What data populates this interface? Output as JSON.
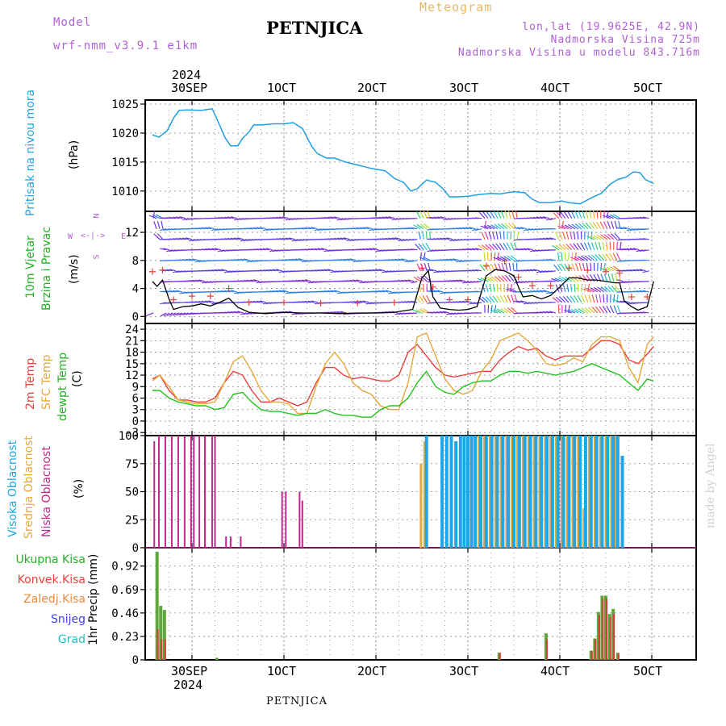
{
  "header": {
    "model_label": "Model",
    "model_name": "wrf-nmm_v3.9.1 e1km",
    "title": "PETNJICA",
    "meteogram": "Meteogram",
    "lonlat": "lon,lat (19.9625E, 42.9N)",
    "altitude": "Nadmorska Visina 725m",
    "model_altitude": "Nadmorska Visina u modelu 843.716m",
    "credit": "made by Angel",
    "bottom_title": "PETNJICA"
  },
  "colors": {
    "pressure": "#1e9fe6",
    "temp2m": "#e8413c",
    "sfc_temp": "#e6a73c",
    "dewpoint": "#22c31e",
    "high_cloud": "#1ea6e6",
    "mid_cloud": "#e6aa3c",
    "low_cloud": "#c0278f",
    "total_precip": "#5ea83a",
    "conv_precip": "#d8383a",
    "grid": "#888888"
  },
  "time_axis": {
    "year": "2024",
    "top_labels": [
      "30SEP",
      "1OCT",
      "2OCT",
      "3OCT",
      "4OCT",
      "5OCT"
    ],
    "bottom_labels": [
      "30SEP",
      "1OCT",
      "2OCT",
      "3OCT",
      "4OCT",
      "5OCT"
    ]
  },
  "labels": {
    "pressure": [
      "Pritisak na nivou mora",
      "(hPa)"
    ],
    "wind": [
      "10m Vjetar",
      "Brzina i Pravac",
      "(m/s)"
    ],
    "compass": {
      "n": "N",
      "s": "S",
      "w": "W",
      "e": "E"
    },
    "temp": [
      "2m Temp",
      "SFC Temp",
      "dewpt Temp",
      "(C)"
    ],
    "cloud": [
      "Visoka Oblacnost",
      "Srednja Oblacnost",
      "Niska Oblacnost",
      "(%)"
    ],
    "precip_axis": "1hr Precip (mm)",
    "precip_legend": [
      "Ukupna Kisa",
      "Konvek.Kisa",
      "Zaledj.Kisa",
      "Snijeg",
      "Grad"
    ]
  },
  "legend_colors": [
    "#22b022",
    "#e8413c",
    "#f08a3c",
    "#4040e0",
    "#20c0c0"
  ],
  "chart_data": [
    {
      "type": "line",
      "name": "pressure",
      "ylabel": "(hPa)",
      "ylim": [
        1006.5,
        1025.7
      ],
      "yticks": [
        1010,
        1015,
        1020,
        1025
      ],
      "xlim": [
        -0.43,
        5.02
      ],
      "x": [
        -0.43,
        -0.36,
        -0.27,
        -0.2,
        -0.14,
        -0.05,
        0.1,
        0.22,
        0.3,
        0.36,
        0.42,
        0.5,
        0.55,
        0.62,
        0.67,
        0.76,
        0.88,
        1.0,
        1.1,
        1.2,
        1.3,
        1.36,
        1.46,
        1.55,
        1.67,
        1.8,
        1.95,
        2.1,
        2.2,
        2.3,
        2.38,
        2.45,
        2.55,
        2.65,
        2.73,
        2.8,
        2.9,
        3.0,
        3.12,
        3.25,
        3.35,
        3.5,
        3.62,
        3.7,
        3.78,
        3.9,
        4.02,
        4.1,
        4.22,
        4.35,
        4.45,
        4.55,
        4.63,
        4.72,
        4.8,
        4.87,
        4.93,
        5.02
      ],
      "y": [
        1019.7,
        1019.3,
        1020.4,
        1022.6,
        1023.9,
        1024.0,
        1023.9,
        1024.2,
        1021.4,
        1019.2,
        1017.8,
        1017.8,
        1019.1,
        1020.2,
        1021.4,
        1021.4,
        1021.6,
        1021.6,
        1021.8,
        1020.8,
        1017.8,
        1016.5,
        1015.7,
        1015.7,
        1015.0,
        1014.5,
        1013.9,
        1013.5,
        1012.2,
        1011.5,
        1010.0,
        1010.4,
        1011.9,
        1011.5,
        1010.4,
        1009.0,
        1009.0,
        1009.1,
        1009.4,
        1009.6,
        1009.5,
        1009.9,
        1009.7,
        1008.6,
        1008.0,
        1008.0,
        1008.3,
        1008.0,
        1007.8,
        1008.9,
        1009.6,
        1011.2,
        1012.0,
        1012.4,
        1013.3,
        1013.2,
        1012.0,
        1011.3
      ]
    },
    {
      "type": "line",
      "name": "wind",
      "ylabel": "(m/s)",
      "ylim": [
        -1.0,
        15.0
      ],
      "yticks": [
        0,
        4,
        8,
        12
      ],
      "x": [
        -0.43,
        -0.38,
        -0.32,
        -0.25,
        -0.2,
        -0.1,
        0.0,
        0.1,
        0.2,
        0.3,
        0.4,
        0.5,
        0.62,
        0.8,
        1.0,
        1.2,
        1.4,
        1.6,
        1.8,
        2.0,
        2.2,
        2.4,
        2.5,
        2.57,
        2.62,
        2.7,
        2.8,
        2.9,
        3.0,
        3.1,
        3.2,
        3.3,
        3.4,
        3.5,
        3.55,
        3.6,
        3.7,
        3.8,
        3.9,
        4.0,
        4.1,
        4.2,
        4.3,
        4.4,
        4.5,
        4.6,
        4.65,
        4.7,
        4.78,
        4.85,
        4.95,
        5.02
      ],
      "y": [
        5.0,
        4.3,
        5.2,
        2.5,
        1.0,
        1.4,
        1.5,
        1.8,
        1.5,
        2.0,
        2.6,
        1.3,
        0.6,
        0.4,
        0.6,
        0.5,
        0.5,
        0.4,
        0.5,
        0.5,
        0.6,
        1.0,
        5.5,
        6.5,
        2.8,
        1.2,
        1.0,
        0.9,
        1.0,
        1.4,
        5.8,
        6.7,
        6.5,
        5.8,
        4.2,
        2.8,
        3.0,
        2.5,
        3.0,
        4.2,
        5.5,
        5.5,
        5.2,
        5.2,
        5.0,
        4.8,
        4.8,
        2.2,
        1.4,
        0.9,
        1.4,
        5.0
      ]
    },
    {
      "type": "line",
      "name": "temperature",
      "ylabel": "(C)",
      "ylim": [
        -3.8,
        25.5
      ],
      "yticks": [
        -3,
        0,
        3,
        6,
        9,
        12,
        15,
        18,
        21,
        24
      ],
      "x": [
        -0.43,
        -0.35,
        -0.25,
        -0.15,
        -0.05,
        0.05,
        0.15,
        0.25,
        0.35,
        0.45,
        0.55,
        0.65,
        0.75,
        0.85,
        0.95,
        1.05,
        1.15,
        1.25,
        1.35,
        1.45,
        1.55,
        1.65,
        1.75,
        1.85,
        1.95,
        2.05,
        2.15,
        2.25,
        2.35,
        2.45,
        2.55,
        2.65,
        2.75,
        2.85,
        2.95,
        3.05,
        3.15,
        3.25,
        3.35,
        3.45,
        3.55,
        3.65,
        3.75,
        3.85,
        3.95,
        4.05,
        4.15,
        4.25,
        4.35,
        4.45,
        4.55,
        4.65,
        4.75,
        4.85,
        4.95,
        5.02
      ],
      "series": [
        {
          "name": "2m Temp",
          "values": [
            11,
            12,
            8,
            5.5,
            5.5,
            5,
            5,
            6,
            10,
            13,
            12,
            8,
            5,
            5,
            6,
            5,
            4,
            5,
            10,
            14,
            14,
            12,
            11,
            11.5,
            11,
            10.5,
            10.5,
            12,
            18,
            20,
            17,
            14,
            12,
            11.5,
            12,
            12.5,
            13,
            13,
            16,
            18,
            19.5,
            18.5,
            19,
            17,
            16,
            17,
            17,
            17,
            19,
            21,
            21,
            20,
            16,
            15,
            17.5,
            19.5
          ]
        },
        {
          "name": "SFC Temp",
          "values": [
            10.5,
            12,
            9,
            5.5,
            5,
            4.5,
            4.5,
            5,
            10,
            15.5,
            17,
            13,
            8,
            5,
            5,
            4.5,
            2,
            2,
            9,
            15,
            18,
            15,
            10,
            8,
            7,
            4,
            3,
            3,
            10,
            22,
            23,
            17,
            11,
            8,
            7,
            8,
            13,
            16,
            21,
            22,
            23,
            21,
            18.5,
            15,
            14.5,
            15,
            16.5,
            15.5,
            20,
            22,
            22,
            21,
            14,
            10,
            20,
            22
          ]
        },
        {
          "name": "dewpt Temp",
          "values": [
            8,
            8,
            6,
            5,
            4.5,
            4,
            4,
            3,
            3.5,
            7,
            7.5,
            5,
            3,
            2.5,
            2.5,
            2,
            1.5,
            2,
            2,
            3,
            2,
            1.5,
            1.5,
            1,
            1,
            3,
            4,
            4,
            6,
            10,
            13,
            9,
            7.5,
            7,
            9,
            10,
            10.5,
            10.5,
            12,
            13,
            13,
            12.5,
            13,
            12.5,
            12,
            12.5,
            13,
            14,
            15,
            14,
            13,
            12,
            10,
            8,
            11,
            10.5
          ]
        }
      ]
    },
    {
      "type": "bar",
      "name": "cloud_cover",
      "ylabel": "(%)",
      "ylim": [
        0,
        100
      ],
      "yticks": [
        0,
        25,
        50,
        75,
        100
      ],
      "series": [
        {
          "name": "Niska Oblacnost",
          "x": [
            -0.41,
            -0.36,
            -0.29,
            -0.22,
            -0.15,
            -0.08,
            -0.01,
            0.02,
            0.08,
            0.14,
            0.22,
            0.25,
            0.37,
            0.42,
            0.53,
            0.98,
            1.02,
            1.17,
            1.2
          ],
          "values": [
            95,
            100,
            100,
            100,
            100,
            100,
            100,
            100,
            100,
            100,
            100,
            100,
            10,
            10,
            10,
            50,
            50,
            50,
            42
          ]
        },
        {
          "name": "Srednja Oblacnost",
          "x": [
            2.49,
            2.53,
            3.12,
            3.18,
            3.24,
            3.3,
            3.36,
            3.42,
            3.48,
            3.54,
            3.6,
            3.66,
            3.72,
            3.78,
            3.84,
            3.9,
            3.96,
            4.02,
            4.08,
            4.14,
            4.2,
            4.26,
            4.32,
            4.38,
            4.44,
            4.5,
            4.56,
            4.6
          ],
          "values": [
            75,
            95,
            100,
            100,
            100,
            100,
            100,
            100,
            100,
            100,
            100,
            100,
            100,
            100,
            100,
            100,
            100,
            100,
            100,
            100,
            100,
            35,
            100,
            100,
            100,
            100,
            100,
            100
          ]
        },
        {
          "name": "Visoka Oblacnost",
          "x": [
            2.55,
            2.72,
            2.77,
            2.82,
            2.87,
            2.92,
            2.96,
            3.0,
            3.04,
            3.08,
            3.14,
            3.2,
            3.26,
            3.32,
            3.38,
            3.44,
            3.5,
            3.56,
            3.62,
            3.68,
            3.74,
            3.8,
            3.86,
            3.92,
            3.98,
            4.04,
            4.1,
            4.16,
            4.22,
            4.28,
            4.34,
            4.4,
            4.46,
            4.52,
            4.58,
            4.63,
            4.68
          ],
          "values": [
            100,
            100,
            100,
            100,
            95,
            100,
            100,
            100,
            100,
            100,
            100,
            100,
            100,
            100,
            100,
            100,
            100,
            100,
            100,
            100,
            100,
            100,
            100,
            100,
            100,
            100,
            100,
            100,
            100,
            100,
            100,
            100,
            100,
            100,
            100,
            100,
            82
          ]
        }
      ]
    },
    {
      "type": "bar",
      "name": "precipitation",
      "ylabel": "1hr Precip (mm)",
      "ylim": [
        0,
        1.1
      ],
      "yticks": [
        0,
        0.23,
        0.46,
        0.69,
        0.92
      ],
      "series": [
        {
          "name": "Ukupna Kisa",
          "x": [
            -0.38,
            -0.34,
            -0.3,
            0.27,
            3.34,
            3.85,
            4.34,
            4.38,
            4.42,
            4.46,
            4.5,
            4.54,
            4.58,
            4.63
          ],
          "values": [
            1.06,
            0.53,
            0.49,
            0.02,
            0.07,
            0.26,
            0.09,
            0.21,
            0.47,
            0.63,
            0.63,
            0.45,
            0.5,
            0.07
          ]
        },
        {
          "name": "Konvek.Kisa",
          "x": [
            -0.38,
            -0.34,
            -0.3,
            3.34,
            3.85,
            4.34,
            4.38,
            4.42,
            4.46,
            4.5,
            4.54,
            4.58,
            4.63
          ],
          "values": [
            0.3,
            0.2,
            0.2,
            0.07,
            0.2,
            0.09,
            0.2,
            0.44,
            0.6,
            0.6,
            0.42,
            0.45,
            0.06
          ]
        }
      ]
    }
  ]
}
